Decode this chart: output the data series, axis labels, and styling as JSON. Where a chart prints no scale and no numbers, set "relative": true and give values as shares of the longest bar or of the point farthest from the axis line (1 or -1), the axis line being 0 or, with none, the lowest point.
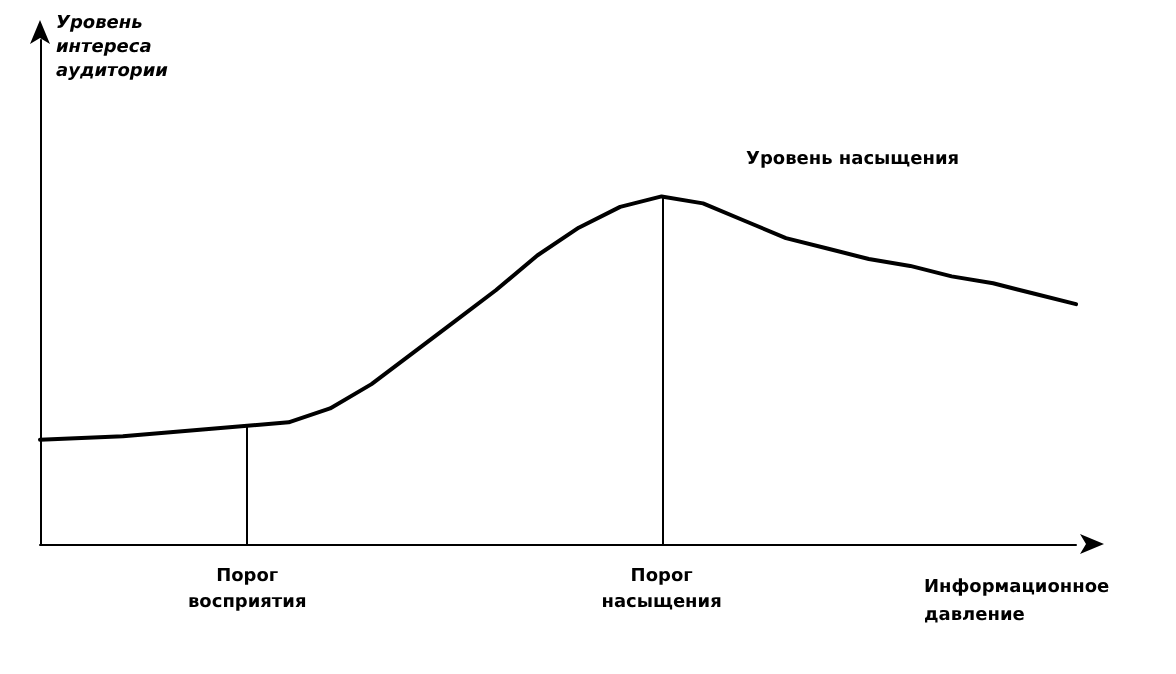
{
  "chart_data": {
    "type": "line",
    "relative": true,
    "xlabel": "Информационное давление",
    "annotations": [
      "Уровень интереса аудитории",
      "Уровень насыщения"
    ],
    "categories": [
      null,
      null,
      null,
      null,
      null,
      "Порог восприятия",
      null,
      null,
      null,
      null,
      null,
      null,
      null,
      null,
      null,
      "Порог насыщения",
      null,
      null,
      null,
      null,
      null,
      null,
      null,
      null,
      null,
      null
    ],
    "series": [
      {
        "color": "#000000",
        "values": [
          0.3,
          0.305,
          0.31,
          0.32,
          0.33,
          0.34,
          0.35,
          0.39,
          0.46,
          0.55,
          0.64,
          0.73,
          0.83,
          0.91,
          0.97,
          1.0,
          0.98,
          0.93,
          0.88,
          0.85,
          0.82,
          0.8,
          0.77,
          0.75,
          0.72,
          0.69
        ]
      }
    ],
    "ref_lines": [
      {
        "axis": "x",
        "value": "Порог восприятия",
        "color": "#000000"
      },
      {
        "axis": "x",
        "value": "Порог насыщения",
        "color": "#000000"
      }
    ],
    "marker": "none",
    "line_style": "solid",
    "grid": false,
    "tick_labels": "x"
  }
}
